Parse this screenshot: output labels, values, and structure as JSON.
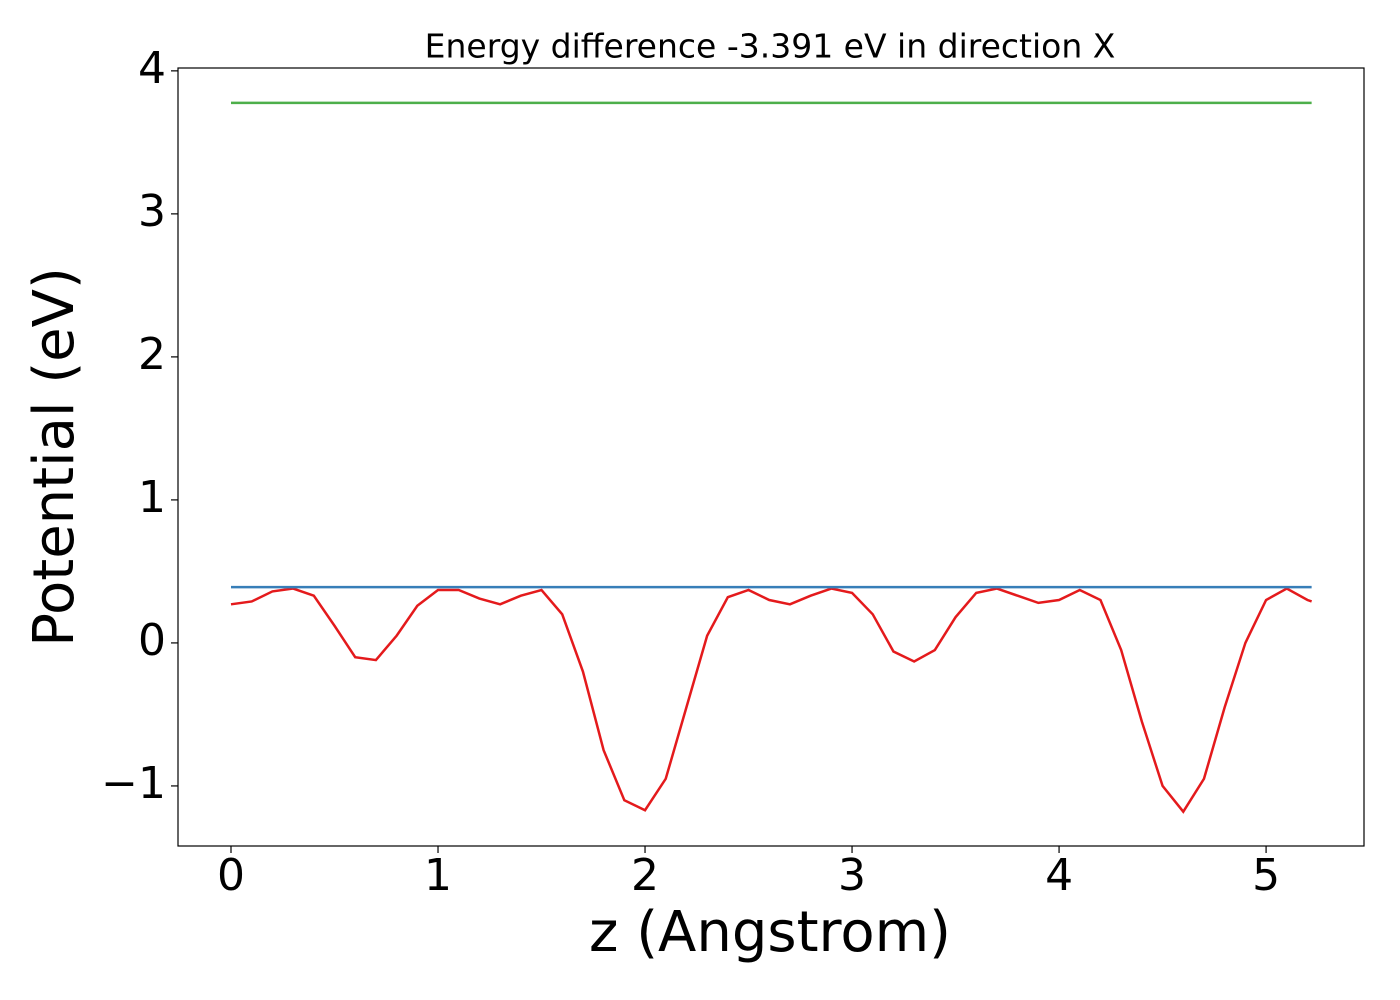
{
  "chart_data": {
    "type": "line",
    "title": "Energy difference -3.391 eV in direction X",
    "x_label": "z (Angstrom)",
    "y_label": "Potential (eV)",
    "xlim": [
      -0.256,
      5.473
    ],
    "ylim": [
      -1.42,
      4.02
    ],
    "xticks": [
      0,
      1,
      2,
      3,
      4,
      5
    ],
    "yticks": [
      {
        "value": -1,
        "label": "−1"
      },
      0,
      1,
      2,
      3,
      4
    ],
    "series": [
      {
        "color": "#e41a1c",
        "x": [
          0,
          0.1,
          0.2,
          0.3,
          0.4,
          0.5,
          0.6,
          0.7,
          0.8,
          0.9,
          1.0,
          1.1,
          1.2,
          1.3,
          1.4,
          1.5,
          1.6,
          1.7,
          1.8,
          1.9,
          2.0,
          2.1,
          2.2,
          2.3,
          2.4,
          2.5,
          2.6,
          2.7,
          2.8,
          2.9,
          3.0,
          3.1,
          3.2,
          3.3,
          3.4,
          3.5,
          3.6,
          3.7,
          3.8,
          3.9,
          4.0,
          4.1,
          4.2,
          4.3,
          4.4,
          4.5,
          4.6,
          4.7,
          4.8,
          4.9,
          5.0,
          5.1,
          5.2,
          5.22
        ],
        "values": [
          0.27,
          0.29,
          0.36,
          0.38,
          0.33,
          0.12,
          -0.1,
          -0.12,
          0.05,
          0.26,
          0.37,
          0.37,
          0.31,
          0.27,
          0.33,
          0.37,
          0.2,
          -0.2,
          -0.75,
          -1.1,
          -1.17,
          -0.95,
          -0.45,
          0.05,
          0.32,
          0.37,
          0.3,
          0.27,
          0.33,
          0.38,
          0.35,
          0.2,
          -0.06,
          -0.13,
          -0.05,
          0.18,
          0.35,
          0.38,
          0.33,
          0.28,
          0.3,
          0.37,
          0.3,
          -0.05,
          -0.55,
          -1.0,
          -1.18,
          -0.95,
          -0.45,
          0.0,
          0.3,
          0.38,
          0.3,
          0.29
        ]
      },
      {
        "color": "#377eb8",
        "x": [
          0,
          5.22
        ],
        "values": [
          0.39,
          0.39
        ]
      },
      {
        "color": "#4daf4a",
        "x": [
          0,
          5.22
        ],
        "values": [
          3.776,
          3.776
        ]
      }
    ]
  }
}
